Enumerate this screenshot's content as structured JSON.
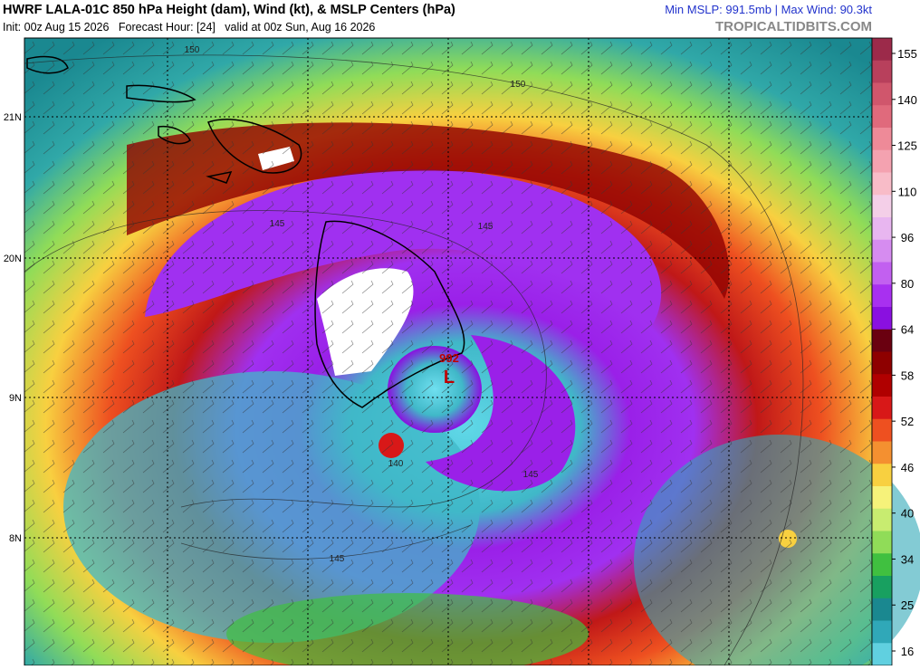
{
  "header": {
    "title": "HWRF LALA-01C 850 hPa Height (dam), Wind (kt), & MSLP Centers (hPa)",
    "init_line": "Init: 00z Aug 15 2026   Forecast Hour: [24]   valid at 00z Sun, Aug 16 2026",
    "stats": "Min MSLP: 991.5mb | Max Wind: 90.3kt",
    "watermark": "TROPICALTIDBITS.COM"
  },
  "map": {
    "lat_labels": [
      "21N",
      "20N",
      "9N",
      "8N"
    ],
    "contour_labels": [
      "150",
      "150",
      "145",
      "145",
      "140",
      "145",
      "145"
    ],
    "low": {
      "pressure": "992",
      "symbol": "L"
    }
  },
  "colorbar": {
    "labels": [
      155,
      140,
      125,
      110,
      96,
      80,
      64,
      58,
      52,
      46,
      40,
      34,
      25,
      16
    ],
    "colors": [
      "#9c2a4a",
      "#b8405c",
      "#d0566c",
      "#e06a7c",
      "#ee8a98",
      "#f4a2b0",
      "#f8bcc8",
      "#f4cfe8",
      "#e8b6f0",
      "#d68cf0",
      "#c260f0",
      "#a830f0",
      "#8a10e0",
      "#6a0010",
      "#8e0000",
      "#b00000",
      "#d81818",
      "#ee5020",
      "#f49030",
      "#f8d040",
      "#f6f27a",
      "#c8ec70",
      "#90dc58",
      "#40c040",
      "#18a060",
      "#1a8890",
      "#30a8b8",
      "#60d0e0"
    ]
  }
}
